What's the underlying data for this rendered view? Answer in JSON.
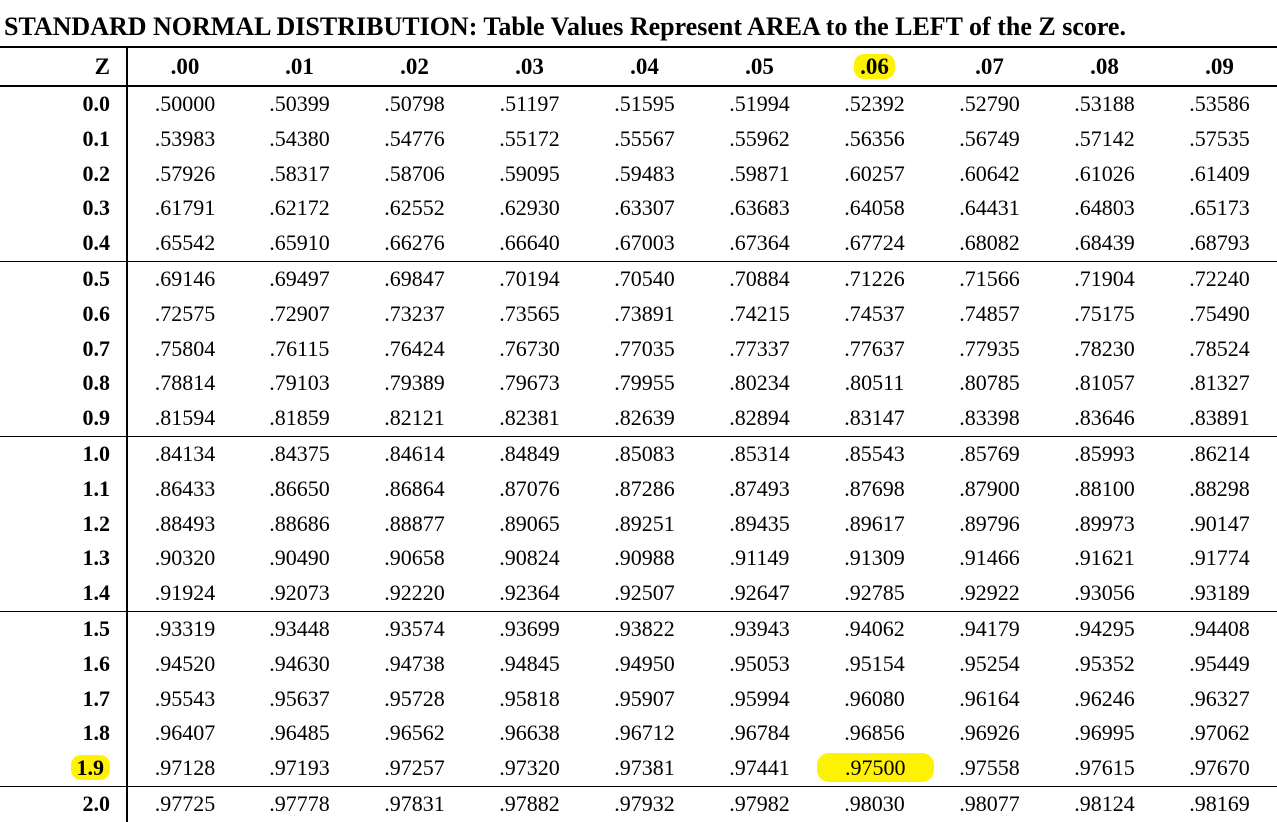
{
  "title": "STANDARD NORMAL DISTRIBUTION: Table Values Represent AREA to the LEFT of the Z score.",
  "header": {
    "z_label": "Z",
    "columns": [
      ".00",
      ".01",
      ".02",
      ".03",
      ".04",
      ".05",
      ".06",
      ".07",
      ".08",
      ".09"
    ]
  },
  "highlight": {
    "color": "#fff200",
    "row_z": "1.9",
    "column": ".06",
    "value": ".97500"
  },
  "rows": [
    {
      "z": "0.0",
      "values": [
        ".50000",
        ".50399",
        ".50798",
        ".51197",
        ".51595",
        ".51994",
        ".52392",
        ".52790",
        ".53188",
        ".53586"
      ]
    },
    {
      "z": "0.1",
      "values": [
        ".53983",
        ".54380",
        ".54776",
        ".55172",
        ".55567",
        ".55962",
        ".56356",
        ".56749",
        ".57142",
        ".57535"
      ]
    },
    {
      "z": "0.2",
      "values": [
        ".57926",
        ".58317",
        ".58706",
        ".59095",
        ".59483",
        ".59871",
        ".60257",
        ".60642",
        ".61026",
        ".61409"
      ]
    },
    {
      "z": "0.3",
      "values": [
        ".61791",
        ".62172",
        ".62552",
        ".62930",
        ".63307",
        ".63683",
        ".64058",
        ".64431",
        ".64803",
        ".65173"
      ]
    },
    {
      "z": "0.4",
      "values": [
        ".65542",
        ".65910",
        ".66276",
        ".66640",
        ".67003",
        ".67364",
        ".67724",
        ".68082",
        ".68439",
        ".68793"
      ]
    },
    {
      "z": "0.5",
      "values": [
        ".69146",
        ".69497",
        ".69847",
        ".70194",
        ".70540",
        ".70884",
        ".71226",
        ".71566",
        ".71904",
        ".72240"
      ]
    },
    {
      "z": "0.6",
      "values": [
        ".72575",
        ".72907",
        ".73237",
        ".73565",
        ".73891",
        ".74215",
        ".74537",
        ".74857",
        ".75175",
        ".75490"
      ]
    },
    {
      "z": "0.7",
      "values": [
        ".75804",
        ".76115",
        ".76424",
        ".76730",
        ".77035",
        ".77337",
        ".77637",
        ".77935",
        ".78230",
        ".78524"
      ]
    },
    {
      "z": "0.8",
      "values": [
        ".78814",
        ".79103",
        ".79389",
        ".79673",
        ".79955",
        ".80234",
        ".80511",
        ".80785",
        ".81057",
        ".81327"
      ]
    },
    {
      "z": "0.9",
      "values": [
        ".81594",
        ".81859",
        ".82121",
        ".82381",
        ".82639",
        ".82894",
        ".83147",
        ".83398",
        ".83646",
        ".83891"
      ]
    },
    {
      "z": "1.0",
      "values": [
        ".84134",
        ".84375",
        ".84614",
        ".84849",
        ".85083",
        ".85314",
        ".85543",
        ".85769",
        ".85993",
        ".86214"
      ]
    },
    {
      "z": "1.1",
      "values": [
        ".86433",
        ".86650",
        ".86864",
        ".87076",
        ".87286",
        ".87493",
        ".87698",
        ".87900",
        ".88100",
        ".88298"
      ]
    },
    {
      "z": "1.2",
      "values": [
        ".88493",
        ".88686",
        ".88877",
        ".89065",
        ".89251",
        ".89435",
        ".89617",
        ".89796",
        ".89973",
        ".90147"
      ]
    },
    {
      "z": "1.3",
      "values": [
        ".90320",
        ".90490",
        ".90658",
        ".90824",
        ".90988",
        ".91149",
        ".91309",
        ".91466",
        ".91621",
        ".91774"
      ]
    },
    {
      "z": "1.4",
      "values": [
        ".91924",
        ".92073",
        ".92220",
        ".92364",
        ".92507",
        ".92647",
        ".92785",
        ".92922",
        ".93056",
        ".93189"
      ]
    },
    {
      "z": "1.5",
      "values": [
        ".93319",
        ".93448",
        ".93574",
        ".93699",
        ".93822",
        ".93943",
        ".94062",
        ".94179",
        ".94295",
        ".94408"
      ]
    },
    {
      "z": "1.6",
      "values": [
        ".94520",
        ".94630",
        ".94738",
        ".94845",
        ".94950",
        ".95053",
        ".95154",
        ".95254",
        ".95352",
        ".95449"
      ]
    },
    {
      "z": "1.7",
      "values": [
        ".95543",
        ".95637",
        ".95728",
        ".95818",
        ".95907",
        ".95994",
        ".96080",
        ".96164",
        ".96246",
        ".96327"
      ]
    },
    {
      "z": "1.8",
      "values": [
        ".96407",
        ".96485",
        ".96562",
        ".96638",
        ".96712",
        ".96784",
        ".96856",
        ".96926",
        ".96995",
        ".97062"
      ]
    },
    {
      "z": "1.9",
      "values": [
        ".97128",
        ".97193",
        ".97257",
        ".97320",
        ".97381",
        ".97441",
        ".97500",
        ".97558",
        ".97615",
        ".97670"
      ]
    },
    {
      "z": "2.0",
      "values": [
        ".97725",
        ".97778",
        ".97831",
        ".97882",
        ".97932",
        ".97982",
        ".98030",
        ".98077",
        ".98124",
        ".98169"
      ]
    }
  ]
}
